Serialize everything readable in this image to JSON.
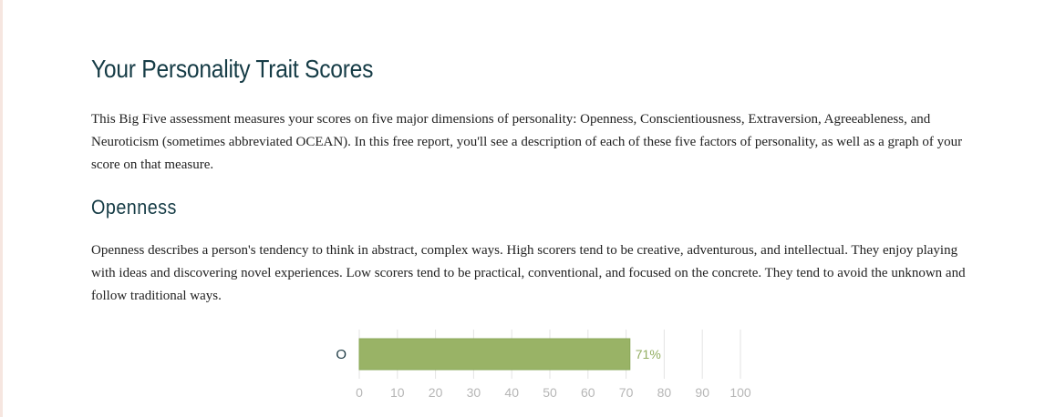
{
  "page": {
    "title": "Your Personality Trait Scores",
    "intro": "This Big Five assessment measures your scores on five major dimensions of personality: Openness, Conscientiousness, Extraversion, Agreeableness, and Neuroticism (sometimes abbreviated OCEAN). In this free report, you'll see a description of each of these five factors of personality, as well as a graph of your score on that measure."
  },
  "section": {
    "heading": "Openness",
    "description": "Openness describes a person's tendency to think in abstract, complex ways. High scorers tend to be creative, adventurous, and intellectual. They enjoy playing with ideas and discovering novel experiences. Low scorers tend to be practical, conventional, and focused on the concrete. They tend to avoid the unknown and follow traditional ways."
  },
  "colors": {
    "heading": "#163c46",
    "bar": "#99b366",
    "bar_border": "#8aa85a",
    "value_label": "#93ae62",
    "grid": "#e3e3e3",
    "tick": "#b6b6b6"
  },
  "chart_data": {
    "type": "bar",
    "orientation": "horizontal",
    "categories": [
      "O"
    ],
    "values": [
      71
    ],
    "value_labels": [
      "71%"
    ],
    "xlim": [
      0,
      100
    ],
    "xticks": [
      0,
      10,
      20,
      30,
      40,
      50,
      60,
      70,
      80,
      90,
      100
    ],
    "grid": true,
    "legend": "none"
  }
}
